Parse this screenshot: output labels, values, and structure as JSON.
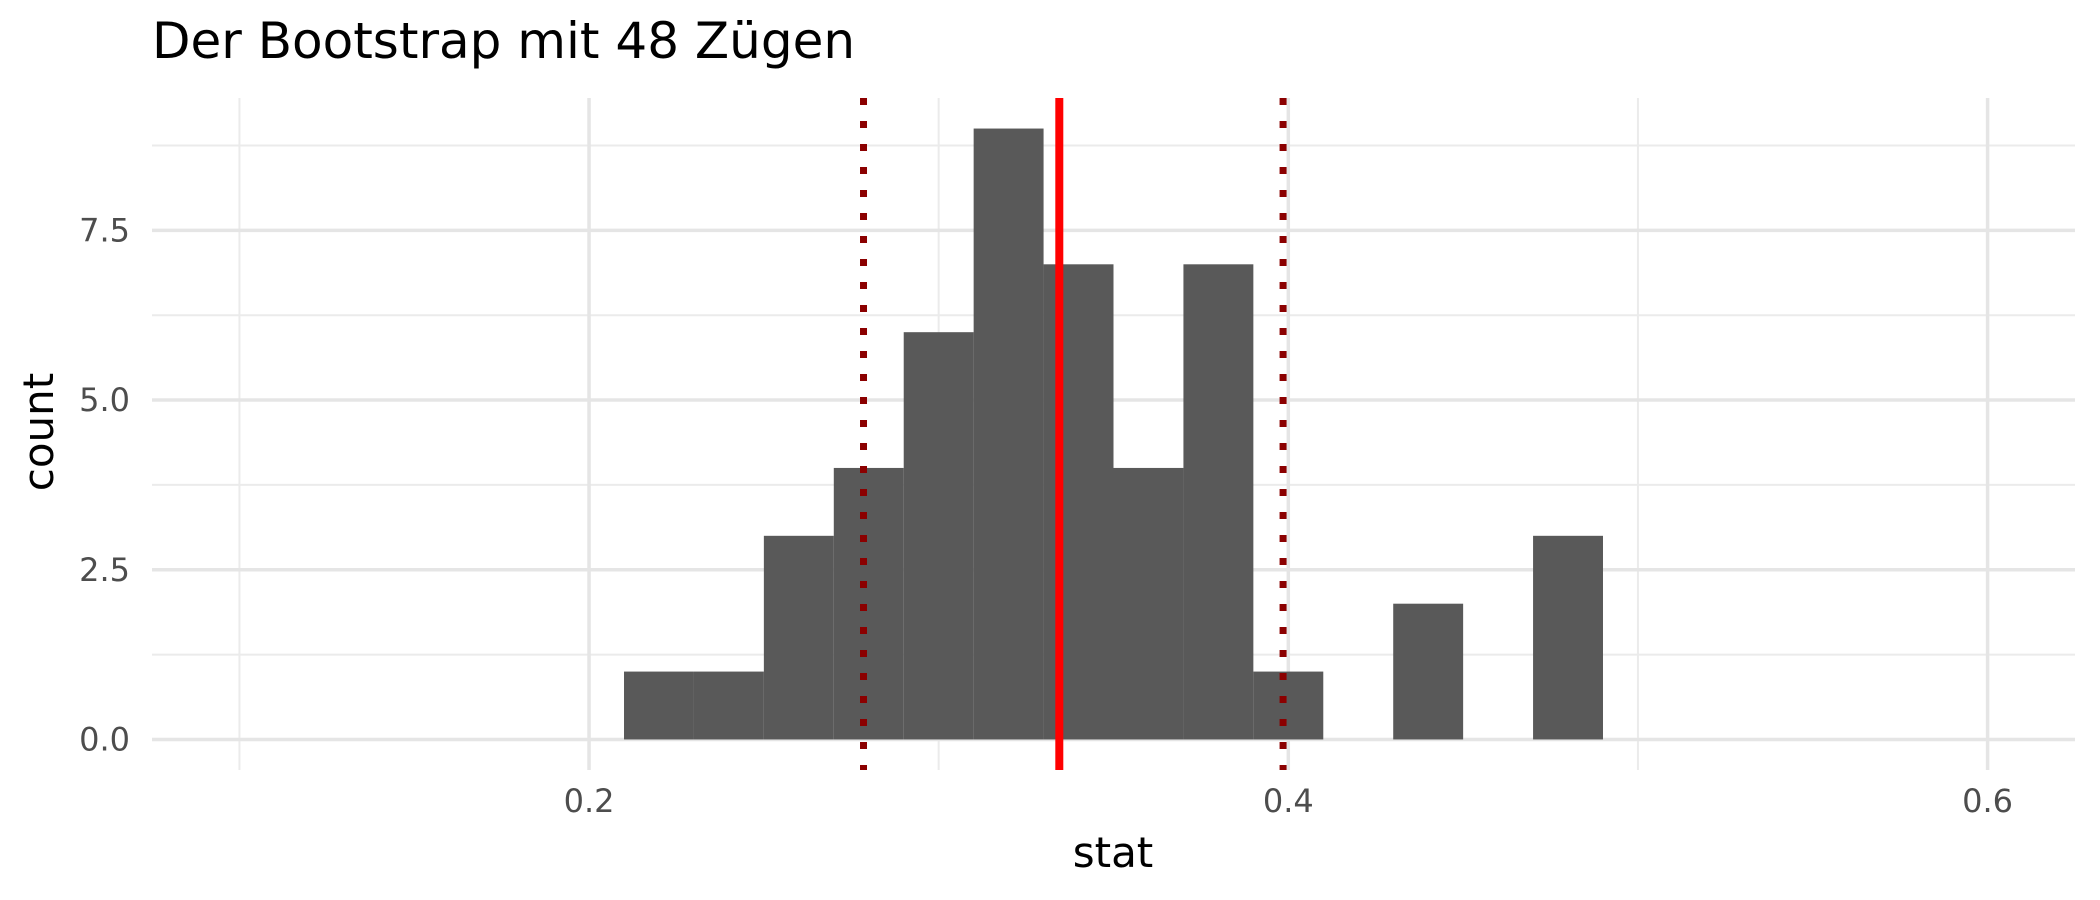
{
  "chart_data": {
    "type": "bar",
    "title": "Der Bootstrap mit 48 Zügen",
    "xlabel": "stat",
    "ylabel": "count",
    "xlim": [
      0.075,
      0.625
    ],
    "ylim": [
      -0.45,
      9.45
    ],
    "x_ticks": [
      0.2,
      0.4,
      0.6
    ],
    "x_tick_labels": [
      "0.2",
      "0.4",
      "0.6"
    ],
    "y_ticks": [
      0,
      2.5,
      5,
      7.5
    ],
    "y_tick_labels": [
      "0.0",
      "2.5",
      "5.0",
      "7.5"
    ],
    "grid": true,
    "bins": [
      {
        "x0": 0.21,
        "x1": 0.23,
        "count": 1
      },
      {
        "x0": 0.23,
        "x1": 0.25,
        "count": 1
      },
      {
        "x0": 0.25,
        "x1": 0.27,
        "count": 3
      },
      {
        "x0": 0.27,
        "x1": 0.29,
        "count": 4
      },
      {
        "x0": 0.29,
        "x1": 0.31,
        "count": 6
      },
      {
        "x0": 0.31,
        "x1": 0.33,
        "count": 9
      },
      {
        "x0": 0.33,
        "x1": 0.35,
        "count": 7
      },
      {
        "x0": 0.35,
        "x1": 0.37,
        "count": 4
      },
      {
        "x0": 0.37,
        "x1": 0.39,
        "count": 7
      },
      {
        "x0": 0.39,
        "x1": 0.41,
        "count": 1
      },
      {
        "x0": 0.41,
        "x1": 0.43,
        "count": 0
      },
      {
        "x0": 0.43,
        "x1": 0.45,
        "count": 2
      },
      {
        "x0": 0.45,
        "x1": 0.47,
        "count": 0
      },
      {
        "x0": 0.47,
        "x1": 0.49,
        "count": 3
      }
    ],
    "bar_color": "#595959",
    "mean_line": {
      "x": 0.3345,
      "color": "#ff0000",
      "style": "solid"
    },
    "ci_lines": [
      {
        "x": 0.2785,
        "color": "#8b0000",
        "style": "dotted"
      },
      {
        "x": 0.3985,
        "color": "#8b0000",
        "style": "dotted"
      }
    ]
  }
}
